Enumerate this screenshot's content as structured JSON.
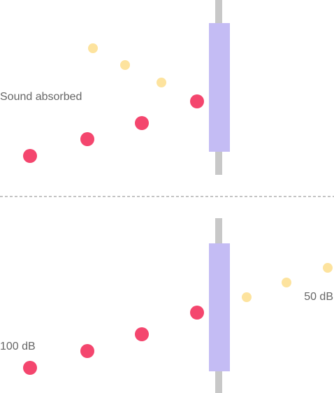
{
  "top_label": "Sound absorbed",
  "input_level": "100 dB",
  "output_level": "50 dB"
}
